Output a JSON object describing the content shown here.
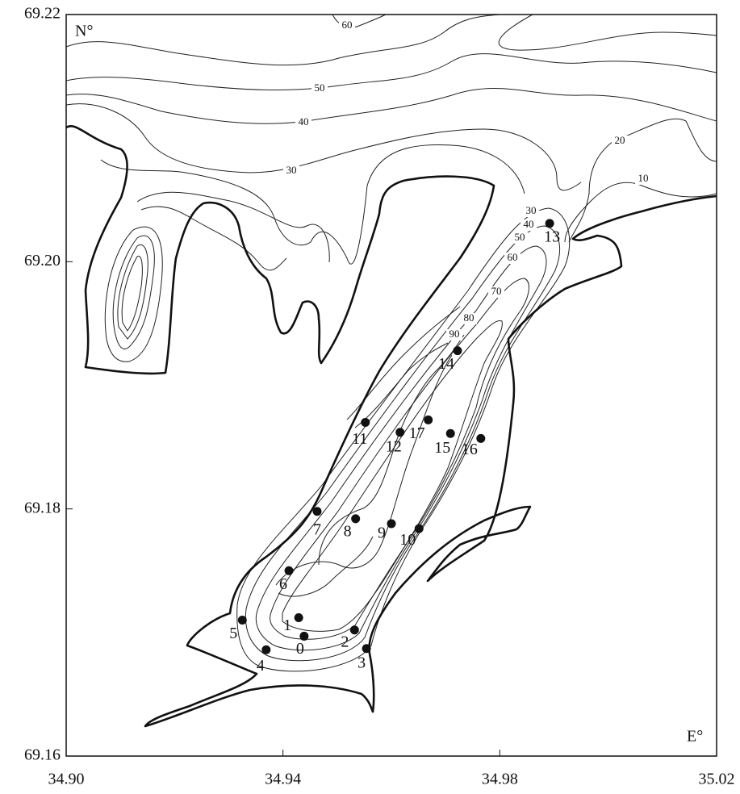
{
  "axes": {
    "xlim": [
      34.9,
      35.02
    ],
    "ylim": [
      69.16,
      69.22
    ],
    "xticks": [
      {
        "value": 34.9,
        "label": "34.90"
      },
      34.94,
      34.98,
      35.02
    ],
    "yticks": [
      69.16,
      69.18,
      {
        "value": 69.2,
        "label": "69.20"
      },
      69.22
    ],
    "x_unit": "E°",
    "y_unit": "N°"
  },
  "stations": [
    {
      "label": "0",
      "lon": 34.9439,
      "lat": 69.1697
    },
    {
      "label": "1",
      "lon": 34.9429,
      "lat": 69.1712
    },
    {
      "label": "2",
      "lon": 34.9532,
      "lat": 69.1702
    },
    {
      "label": "3",
      "lon": 34.9554,
      "lat": 69.1687
    },
    {
      "label": "4",
      "lon": 34.9369,
      "lat": 69.1686
    },
    {
      "label": "5",
      "lon": 34.9325,
      "lat": 69.171
    },
    {
      "label": "6",
      "lon": 34.9411,
      "lat": 69.175
    },
    {
      "label": "7",
      "lon": 34.9463,
      "lat": 69.1798
    },
    {
      "label": "8",
      "lon": 34.9534,
      "lat": 69.1792
    },
    {
      "label": "9",
      "lon": 34.96,
      "lat": 69.1788
    },
    {
      "label": "10",
      "lon": 34.9651,
      "lat": 69.1784
    },
    {
      "label": "11",
      "lon": 34.9552,
      "lat": 69.187
    },
    {
      "label": "12",
      "lon": 34.9616,
      "lat": 69.1862
    },
    {
      "label": "13",
      "lon": 34.9892,
      "lat": 69.2031
    },
    {
      "label": "14",
      "lon": 34.9722,
      "lat": 69.1928
    },
    {
      "label": "15",
      "lon": 34.9709,
      "lat": 69.1861
    },
    {
      "label": "16",
      "lon": 34.9765,
      "lat": 69.1857
    },
    {
      "label": "17",
      "lon": 34.9668,
      "lat": 69.1872
    }
  ],
  "contour_labels": [
    60,
    50,
    40,
    30,
    20,
    10,
    30,
    40,
    50,
    60,
    70,
    80,
    90
  ]
}
